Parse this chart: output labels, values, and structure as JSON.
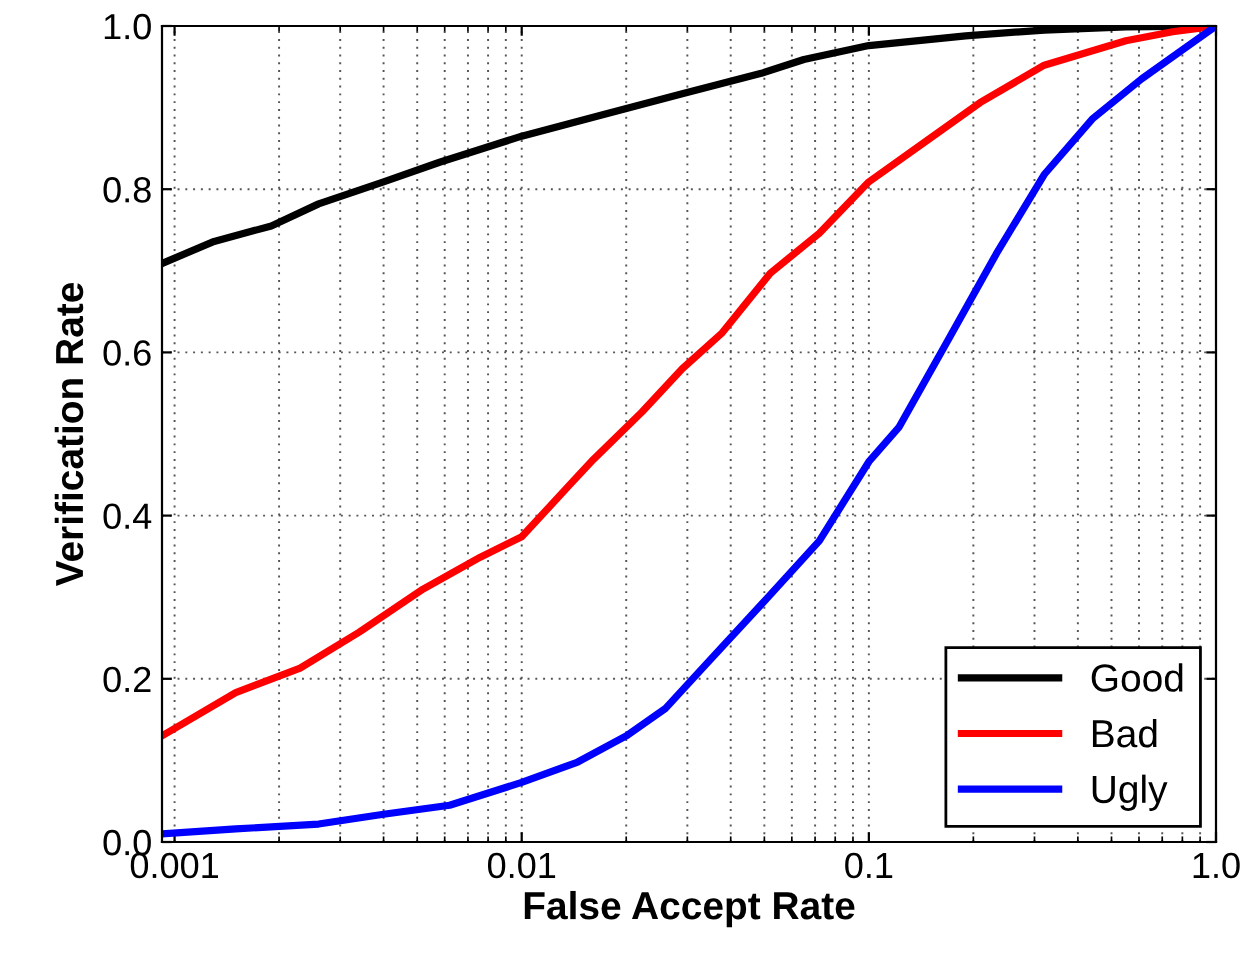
{
  "chart_data": {
    "type": "line",
    "xlabel": "False Accept Rate",
    "ylabel": "Verification Rate",
    "log": "x",
    "xlim": [
      0.00092,
      1.0
    ],
    "ylim": [
      0.0,
      1.0
    ],
    "xticks": [
      0.001,
      0.01,
      0.1,
      {
        "value": 1.0,
        "label": "1.0"
      }
    ],
    "yticks": [
      {
        "value": 0.0,
        "label": "0.0"
      },
      0.2,
      0.4,
      0.6,
      0.8,
      {
        "value": 1.0,
        "label": "1.0"
      }
    ],
    "grid": true,
    "legend": "bottom right",
    "line_style": "solid",
    "marker": "none",
    "series": [
      {
        "name": "Good",
        "color": "#000000",
        "x": [
          0.00092,
          0.0013,
          0.0019,
          0.0026,
          0.004,
          0.0058,
          0.01,
          0.017,
          0.029,
          0.049,
          0.065,
          0.1,
          0.19,
          0.32,
          0.55,
          1.0
        ],
        "values": [
          0.709,
          0.736,
          0.755,
          0.782,
          0.809,
          0.833,
          0.865,
          0.891,
          0.917,
          0.942,
          0.959,
          0.976,
          0.988,
          0.995,
          0.999,
          1.0
        ]
      },
      {
        "name": "Bad",
        "color": "#ff0000",
        "x": [
          0.00092,
          0.0015,
          0.0023,
          0.0034,
          0.0052,
          0.0076,
          0.01,
          0.0137,
          0.0161,
          0.0222,
          0.029,
          0.0378,
          0.052,
          0.072,
          0.1,
          0.144,
          0.209,
          0.32,
          0.55,
          0.75,
          1.0
        ],
        "values": [
          0.13,
          0.183,
          0.213,
          0.257,
          0.31,
          0.349,
          0.374,
          0.437,
          0.469,
          0.527,
          0.58,
          0.624,
          0.697,
          0.746,
          0.809,
          0.857,
          0.906,
          0.952,
          0.982,
          0.993,
          1.0
        ]
      },
      {
        "name": "Ugly",
        "color": "#0000ff",
        "x": [
          0.00092,
          0.0015,
          0.0026,
          0.004,
          0.0062,
          0.01,
          0.0145,
          0.02,
          0.026,
          0.034,
          0.049,
          0.072,
          0.1,
          0.122,
          0.169,
          0.233,
          0.32,
          0.44,
          0.61,
          0.79,
          1.0
        ],
        "values": [
          0.01,
          0.016,
          0.022,
          0.034,
          0.045,
          0.073,
          0.098,
          0.13,
          0.164,
          0.218,
          0.291,
          0.369,
          0.466,
          0.508,
          0.615,
          0.721,
          0.818,
          0.886,
          0.935,
          0.969,
          1.0
        ]
      }
    ]
  }
}
